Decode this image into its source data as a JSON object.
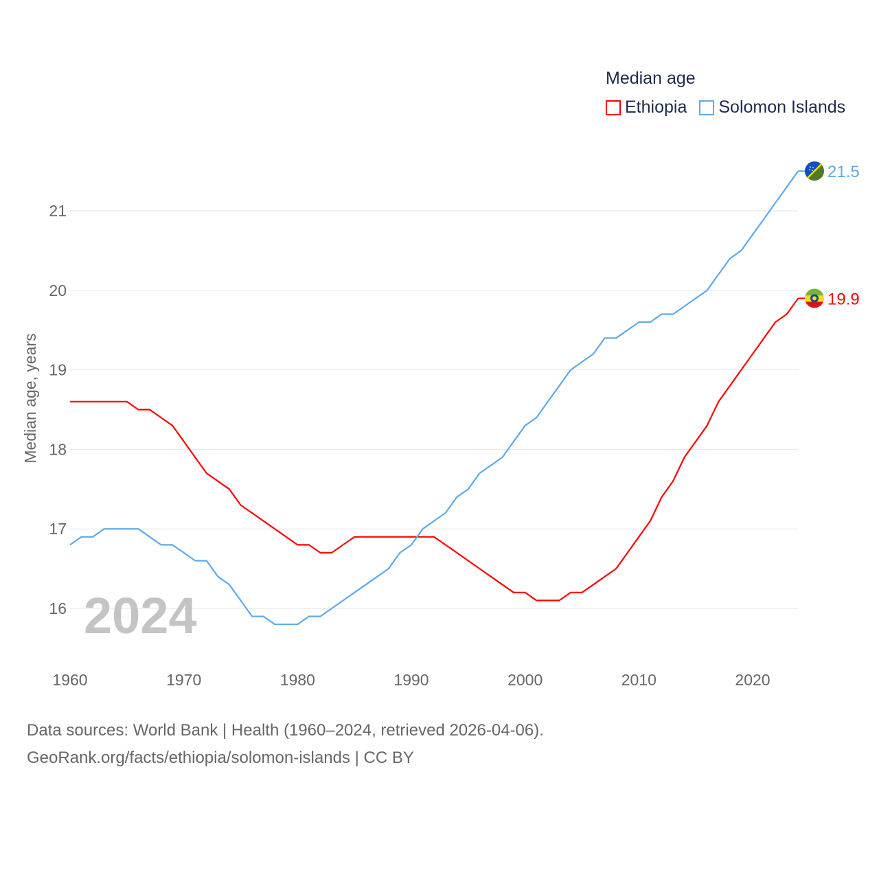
{
  "chart_data": {
    "type": "line",
    "title": "Median age",
    "xlabel": "",
    "ylabel": "Median age, years",
    "xlim": [
      1960,
      2024
    ],
    "ylim": [
      15.5,
      21.7
    ],
    "x_ticks": [
      "1960",
      "1970",
      "1980",
      "1990",
      "2000",
      "2010",
      "2020"
    ],
    "y_ticks": [
      "16",
      "17",
      "18",
      "19",
      "20",
      "21"
    ],
    "grid": true,
    "legend_position": "top-right",
    "watermark_year": "2024",
    "x": [
      1960,
      1961,
      1962,
      1963,
      1964,
      1965,
      1966,
      1967,
      1968,
      1969,
      1970,
      1971,
      1972,
      1973,
      1974,
      1975,
      1976,
      1977,
      1978,
      1979,
      1980,
      1981,
      1982,
      1983,
      1984,
      1985,
      1986,
      1987,
      1988,
      1989,
      1990,
      1991,
      1992,
      1993,
      1994,
      1995,
      1996,
      1997,
      1998,
      1999,
      2000,
      2001,
      2002,
      2003,
      2004,
      2005,
      2006,
      2007,
      2008,
      2009,
      2010,
      2011,
      2012,
      2013,
      2014,
      2015,
      2016,
      2017,
      2018,
      2019,
      2020,
      2021,
      2022,
      2023,
      2024
    ],
    "series": [
      {
        "name": "Ethiopia",
        "color": "#ff0000",
        "end_label": "19.9",
        "values": [
          18.6,
          18.6,
          18.6,
          18.6,
          18.6,
          18.6,
          18.5,
          18.5,
          18.4,
          18.3,
          18.1,
          17.9,
          17.7,
          17.6,
          17.5,
          17.3,
          17.2,
          17.1,
          17.0,
          16.9,
          16.8,
          16.8,
          16.7,
          16.7,
          16.8,
          16.9,
          16.9,
          16.9,
          16.9,
          16.9,
          16.9,
          16.9,
          16.9,
          16.8,
          16.7,
          16.6,
          16.5,
          16.4,
          16.3,
          16.2,
          16.2,
          16.1,
          16.1,
          16.1,
          16.2,
          16.2,
          16.3,
          16.4,
          16.5,
          16.7,
          16.9,
          17.1,
          17.4,
          17.6,
          17.9,
          18.1,
          18.3,
          18.6,
          18.8,
          19.0,
          19.2,
          19.4,
          19.6,
          19.7,
          19.9
        ]
      },
      {
        "name": "Solomon Islands",
        "color": "#5ea9ec",
        "end_label": "21.5",
        "values": [
          16.8,
          16.9,
          16.9,
          17.0,
          17.0,
          17.0,
          17.0,
          16.9,
          16.8,
          16.8,
          16.7,
          16.6,
          16.6,
          16.4,
          16.3,
          16.1,
          15.9,
          15.9,
          15.8,
          15.8,
          15.8,
          15.9,
          15.9,
          16.0,
          16.1,
          16.2,
          16.3,
          16.4,
          16.5,
          16.7,
          16.8,
          17.0,
          17.1,
          17.2,
          17.4,
          17.5,
          17.7,
          17.8,
          17.9,
          18.1,
          18.3,
          18.4,
          18.6,
          18.8,
          19.0,
          19.1,
          19.2,
          19.4,
          19.4,
          19.5,
          19.6,
          19.6,
          19.7,
          19.7,
          19.8,
          19.9,
          20.0,
          20.2,
          20.4,
          20.5,
          20.7,
          20.9,
          21.1,
          21.3,
          21.5
        ]
      }
    ]
  },
  "footer": {
    "source_line": "Data sources: World Bank | Health (1960–2024, retrieved 2026-04-06).",
    "credit_line": "GeoRank.org/facts/ethiopia/solomon-islands | CC BY"
  }
}
